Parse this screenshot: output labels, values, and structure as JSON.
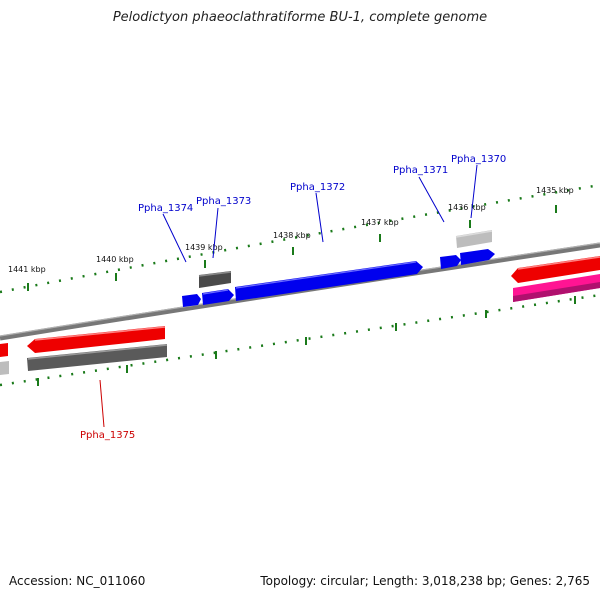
{
  "title": "Pelodictyon phaeoclathratiforme BU-1, complete genome",
  "footer": {
    "accession_label": "Accession:",
    "accession": "NC_011060",
    "topology_label": "Topology:",
    "topology": "circular",
    "length_label": "Length:",
    "length": "3,018,238 bp",
    "genes_label": "Genes:",
    "genes": "2,765"
  },
  "ruler_labels": [
    "1441 kbp",
    "1440 kbp",
    "1439 kbp",
    "1438 kbp",
    "1437 kbp",
    "1436 kbp",
    "1435 kbp"
  ],
  "gene_labels": [
    {
      "name": "Ppha_1374",
      "strand": "forward",
      "color": "#0000cc"
    },
    {
      "name": "Ppha_1373",
      "strand": "forward",
      "color": "#0000cc"
    },
    {
      "name": "Ppha_1372",
      "strand": "forward",
      "color": "#0000cc"
    },
    {
      "name": "Ppha_1371",
      "strand": "forward",
      "color": "#0000cc"
    },
    {
      "name": "Ppha_1370",
      "strand": "forward",
      "color": "#0000cc"
    },
    {
      "name": "Ppha_1375",
      "strand": "reverse",
      "color": "#cc0000"
    }
  ],
  "colors": {
    "forward_cds": "#0000ee",
    "reverse_cds": "#ee0000",
    "gene_grey": "#5a5a5a",
    "light_grey": "#bdbdbd",
    "pink": "#ff1493",
    "tick_green": "#1a7a1a",
    "backbone": "#777777"
  }
}
